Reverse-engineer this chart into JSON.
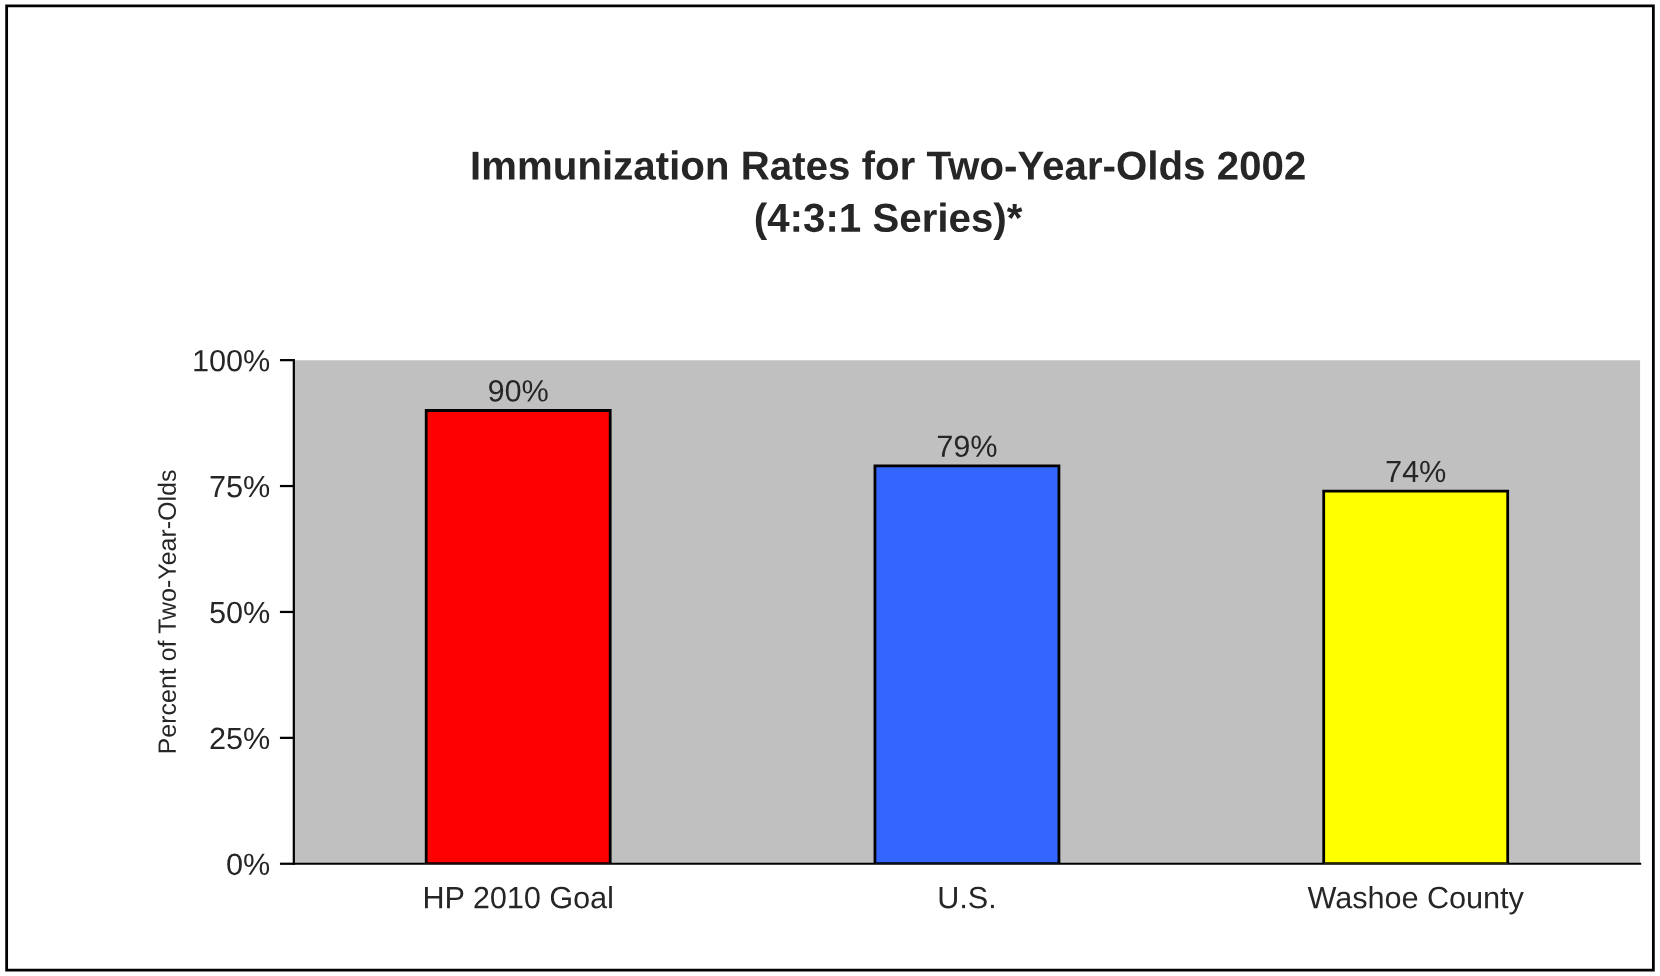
{
  "chart_data": {
    "type": "bar",
    "title": "Immunization Rates for Two-Year-Olds 2002\n(4:3:1 Series)*",
    "ylabel": "Percent of Two-Year-Olds",
    "categories": [
      "HP 2010 Goal",
      "U.S.",
      "Washoe County"
    ],
    "values": [
      90,
      79,
      74
    ],
    "colors": [
      "#ff0000",
      "#3366ff",
      "#ffff00"
    ],
    "value_labels": [
      "90%",
      "79%",
      "74%"
    ],
    "ylim": [
      0,
      100
    ],
    "yticks": [
      {
        "value": 0,
        "label": "0%"
      },
      {
        "value": 25,
        "label": "25%"
      },
      {
        "value": 50,
        "label": "50%"
      },
      {
        "value": 75,
        "label": "75%"
      },
      {
        "value": 100,
        "label": "100%"
      }
    ],
    "grid": false,
    "legend": false
  }
}
